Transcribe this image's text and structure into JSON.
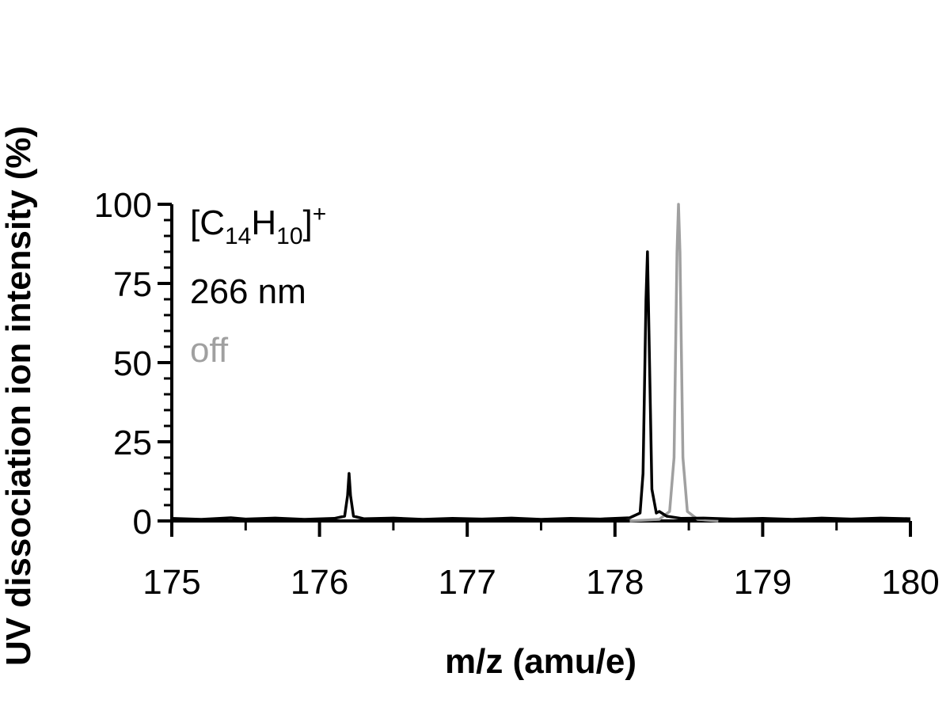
{
  "chart_data": {
    "type": "line",
    "x_label": "m/z (amu/e)",
    "y_label": "UV dissociation ion intensity (%)",
    "annotation_parts": [
      "[C",
      "14",
      "H",
      "10",
      "]",
      "+"
    ],
    "xlim": [
      175,
      180
    ],
    "ylim": [
      0,
      100
    ],
    "xticks": [
      175,
      176,
      177,
      178,
      179,
      180
    ],
    "xminorticks": [
      175.5,
      176.5,
      177.5,
      178.5,
      179.5
    ],
    "yticks": [
      0,
      25,
      50,
      75,
      100
    ],
    "yminorticks": [
      5,
      10,
      15,
      20,
      30,
      35,
      40,
      45,
      55,
      60,
      65,
      70,
      80,
      85,
      90,
      95
    ],
    "grid": false,
    "series": [
      {
        "name": "off",
        "color": "#a0a0a0",
        "x": [
          178.1,
          178.3,
          178.37,
          178.4,
          178.42,
          178.43,
          178.44,
          178.46,
          178.49,
          178.56,
          178.7
        ],
        "values": [
          0,
          0.5,
          3,
          20,
          85,
          100,
          85,
          20,
          3,
          0.5,
          0
        ]
      },
      {
        "name": "266 nm",
        "color": "#000000",
        "x": [
          175.0,
          175.2,
          175.4,
          175.5,
          175.7,
          175.9,
          176.1,
          176.17,
          176.19,
          176.2,
          176.21,
          176.23,
          176.3,
          176.5,
          176.7,
          176.9,
          177.1,
          177.3,
          177.5,
          177.7,
          177.9,
          178.1,
          178.17,
          178.19,
          178.21,
          178.22,
          178.23,
          178.25,
          178.28,
          178.3,
          178.35,
          178.45,
          178.6,
          178.8,
          179.0,
          179.2,
          179.4,
          179.6,
          179.8,
          180.0
        ],
        "values": [
          0.8,
          0.5,
          1.0,
          0.6,
          0.9,
          0.5,
          0.8,
          1.5,
          8,
          15,
          8,
          1.5,
          0.7,
          0.9,
          0.5,
          0.8,
          0.6,
          0.9,
          0.5,
          0.8,
          0.6,
          1.0,
          2.5,
          15,
          70,
          85,
          60,
          10,
          2.5,
          3,
          1.5,
          0.8,
          0.9,
          0.6,
          0.8,
          0.5,
          0.9,
          0.6,
          0.9,
          0.7
        ]
      }
    ]
  }
}
